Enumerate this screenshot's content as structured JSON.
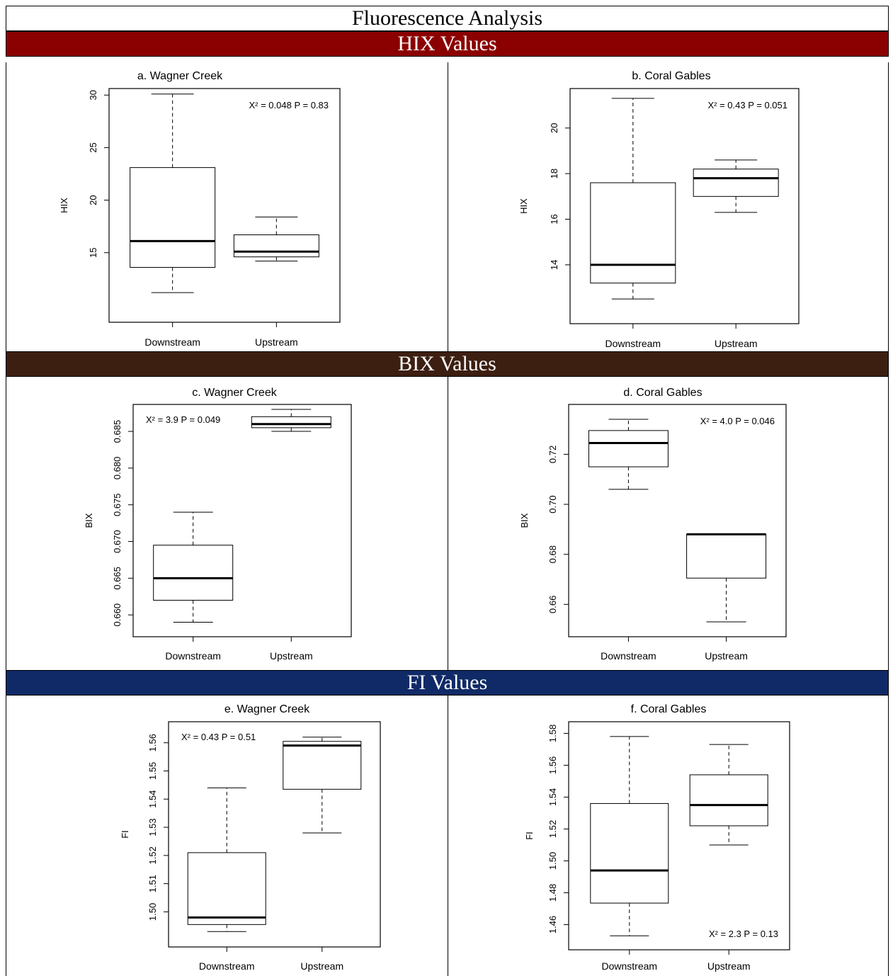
{
  "title": "Fluorescence Analysis",
  "sections": [
    {
      "label": "HIX Values",
      "color": "#8b0000"
    },
    {
      "label": "BIX Values",
      "color": "#3d1f12"
    },
    {
      "label": "FI Values",
      "color": "#0f2a66"
    }
  ],
  "chart_data": [
    {
      "type": "boxplot",
      "title": "a. Wagner Creek",
      "ylabel": "HIX",
      "categories": [
        "Downstream",
        "Upstream"
      ],
      "boxes": [
        {
          "whisker_low": 11.2,
          "q1": 13.6,
          "median": 16.1,
          "q3": 23.1,
          "whisker_high": 30.1
        },
        {
          "whisker_low": 14.2,
          "q1": 14.6,
          "median": 15.1,
          "q3": 16.7,
          "whisker_high": 18.4
        }
      ],
      "ylim": [
        9.2,
        29.8
      ],
      "yticks": [
        15,
        20,
        25,
        30
      ],
      "ytick_labels": [
        "15",
        "20",
        "25",
        "30"
      ],
      "annotation": "X² = 0.048 P = 0.83",
      "annotation_pos": "top-right"
    },
    {
      "type": "boxplot",
      "title": "b. Coral Gables",
      "ylabel": "HIX",
      "categories": [
        "Downstream",
        "Upstream"
      ],
      "boxes": [
        {
          "whisker_low": 12.5,
          "q1": 13.2,
          "median": 14.0,
          "q3": 17.6,
          "whisker_high": 21.3
        },
        {
          "whisker_low": 16.3,
          "q1": 17.0,
          "median": 17.8,
          "q3": 18.2,
          "whisker_high": 18.6
        }
      ],
      "ylim": [
        11.8,
        21.35
      ],
      "yticks": [
        14,
        16,
        18,
        20
      ],
      "ytick_labels": [
        "14",
        "16",
        "18",
        "20"
      ],
      "annotation": "X² = 0.43  P = 0.051",
      "annotation_pos": "top-right"
    },
    {
      "type": "boxplot",
      "title": "c. Wagner Creek",
      "ylabel": "BIX",
      "categories": [
        "Downstream",
        "Upstream"
      ],
      "boxes": [
        {
          "whisker_low": 0.659,
          "q1": 0.662,
          "median": 0.665,
          "q3": 0.6695,
          "whisker_high": 0.674
        },
        {
          "whisker_low": 0.685,
          "q1": 0.6855,
          "median": 0.686,
          "q3": 0.687,
          "whisker_high": 0.688
        }
      ],
      "ylim": [
        0.6582,
        0.6875
      ],
      "yticks": [
        0.66,
        0.665,
        0.67,
        0.675,
        0.68,
        0.685
      ],
      "ytick_labels": [
        "0.660",
        "0.665",
        "0.670",
        "0.675",
        "0.680",
        "0.685"
      ],
      "annotation": "X² = 3.9  P = 0.049",
      "annotation_pos": "top-left"
    },
    {
      "type": "boxplot",
      "title": "d. Coral Gables",
      "ylabel": "BIX",
      "categories": [
        "Downstream",
        "Upstream"
      ],
      "boxes": [
        {
          "whisker_low": 0.706,
          "q1": 0.715,
          "median": 0.7245,
          "q3": 0.7295,
          "whisker_high": 0.734
        },
        {
          "whisker_low": 0.653,
          "q1": 0.6705,
          "median": 0.688,
          "q3": 0.688,
          "whisker_high": 0.688
        }
      ],
      "ylim": [
        0.6505,
        0.7365
      ],
      "yticks": [
        0.66,
        0.68,
        0.7,
        0.72
      ],
      "ytick_labels": [
        "0.66",
        "0.68",
        "0.70",
        "0.72"
      ],
      "annotation": "X² = 4.0  P = 0.046",
      "annotation_pos": "top-right"
    },
    {
      "type": "boxplot",
      "title": "e. Wagner Creek",
      "ylabel": "FI",
      "categories": [
        "Downstream",
        "Upstream"
      ],
      "boxes": [
        {
          "whisker_low": 1.493,
          "q1": 1.4955,
          "median": 1.498,
          "q3": 1.521,
          "whisker_high": 1.544
        },
        {
          "whisker_low": 1.528,
          "q1": 1.5435,
          "median": 1.559,
          "q3": 1.5605,
          "whisker_high": 1.562
        }
      ],
      "ylim": [
        1.4905,
        1.5645
      ],
      "yticks": [
        1.5,
        1.51,
        1.52,
        1.53,
        1.54,
        1.55,
        1.56
      ],
      "ytick_labels": [
        "1.50",
        "1.51",
        "1.52",
        "1.53",
        "1.54",
        "1.55",
        "1.56"
      ],
      "annotation": "X² = 0.43  P = 0.51",
      "annotation_pos": "top-left"
    },
    {
      "type": "boxplot",
      "title": "f. Coral Gables",
      "ylabel": "FI",
      "categories": [
        "Downstream",
        "Upstream"
      ],
      "boxes": [
        {
          "whisker_low": 1.453,
          "q1": 1.4735,
          "median": 1.494,
          "q3": 1.536,
          "whisker_high": 1.578
        },
        {
          "whisker_low": 1.51,
          "q1": 1.522,
          "median": 1.535,
          "q3": 1.554,
          "whisker_high": 1.573
        }
      ],
      "ylim": [
        1.4495,
        1.582
      ],
      "yticks": [
        1.46,
        1.48,
        1.5,
        1.52,
        1.54,
        1.56,
        1.58
      ],
      "ytick_labels": [
        "1.46",
        "1.48",
        "1.50",
        "1.52",
        "1.54",
        "1.56",
        "1.58"
      ],
      "annotation": "X² = 2.3 P = 0.13",
      "annotation_pos": "bottom-right"
    }
  ]
}
